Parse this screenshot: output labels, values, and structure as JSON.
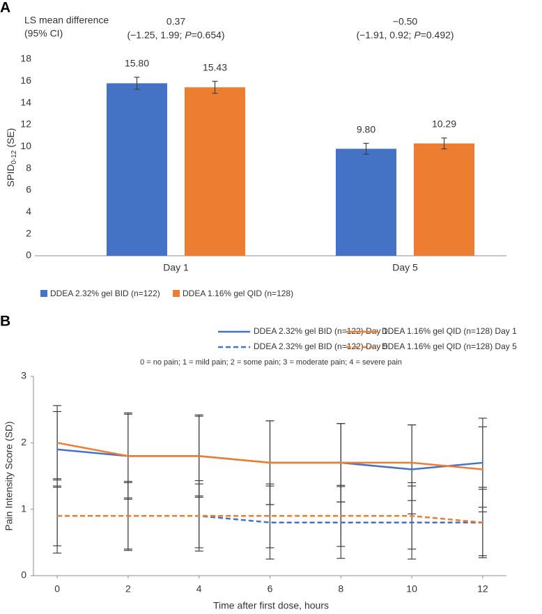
{
  "chart_data": [
    {
      "type": "bar",
      "panel_label": "A",
      "annotations": {
        "title": [
          "LS mean difference",
          "(95% CI)"
        ],
        "differences": [
          {
            "estimate": "0.37",
            "ci": "(−1.25, 1.99; ",
            "p_label": "P",
            "p_value": "=0.654)"
          },
          {
            "estimate": "−0.50",
            "ci": "(−1.91, 0.92; ",
            "p_label": "P",
            "p_value": "=0.492)"
          }
        ]
      },
      "y_label": {
        "text": "SPID",
        "subscript": "0-12",
        "suffix": "(SE)"
      },
      "categories": [
        "Day 1",
        "Day 5"
      ],
      "series": [
        {
          "name": "DDEA 2.32% gel BID (n=122)",
          "color": "#4472c4",
          "values": [
            15.8,
            9.8
          ],
          "value_labels": [
            "15.80",
            "9.80"
          ],
          "errors": [
            0.55,
            0.5
          ]
        },
        {
          "name": "DDEA 1.16% gel QID (n=128)",
          "color": "#ed7d31",
          "values": [
            15.43,
            10.29
          ],
          "value_labels": [
            "15.43",
            "10.29"
          ],
          "errors": [
            0.55,
            0.5
          ]
        }
      ],
      "error_color": "#404040",
      "ylim": [
        0,
        18
      ],
      "yticks": [
        0,
        2,
        4,
        6,
        8,
        10,
        12,
        14,
        16,
        18
      ],
      "legend": "bottom-left"
    },
    {
      "type": "line",
      "panel_label": "B",
      "note": "0 = no pain; 1 = mild pain; 2 = some pain; 3 = moderate pain; 4 = severe pain",
      "x_label": "Time after first dose, hours",
      "y_label": "Pain Intensity Score (SD)",
      "x": [
        0,
        2,
        4,
        6,
        8,
        10,
        12
      ],
      "series": [
        {
          "name": "DDEA 2.32% gel BID (n=122) Day 1",
          "color": "#4472c4",
          "dash": false,
          "values": [
            1.9,
            1.8,
            1.8,
            1.7,
            1.7,
            1.6,
            1.7
          ],
          "errors": [
            0.57,
            0.63,
            0.62,
            0.63,
            0.59,
            0.67,
            0.67
          ]
        },
        {
          "name": "DDEA 1.16% gel QID (n=128) Day 1",
          "color": "#ed7d31",
          "dash": false,
          "values": [
            2.0,
            1.8,
            1.8,
            1.7,
            1.7,
            1.7,
            1.6
          ],
          "errors": [
            0.56,
            0.65,
            0.6,
            0.63,
            0.59,
            0.57,
            0.64
          ]
        },
        {
          "name": "DDEA 2.32% gel BID (n=122) Day 5",
          "color": "#4472c4",
          "dash": true,
          "values": [
            0.9,
            0.9,
            0.9,
            0.8,
            0.8,
            0.8,
            0.8
          ],
          "errors": [
            0.45,
            0.5,
            0.53,
            0.55,
            0.54,
            0.55,
            0.53
          ]
        },
        {
          "name": "DDEA 1.16% gel QID (n=128) Day 5",
          "color": "#ed7d31",
          "dash": true,
          "values": [
            0.9,
            0.9,
            0.9,
            0.9,
            0.9,
            0.9,
            0.8
          ],
          "errors": [
            0.56,
            0.52,
            0.48,
            0.48,
            0.46,
            0.5,
            0.5
          ]
        }
      ],
      "error_color": "#404040",
      "xlim": [
        -0.67,
        12.67
      ],
      "xticks": [
        0,
        2,
        4,
        6,
        8,
        10,
        12
      ],
      "ylim": [
        0,
        3
      ],
      "yticks": [
        0,
        1,
        2,
        3
      ],
      "legend": "top"
    }
  ]
}
